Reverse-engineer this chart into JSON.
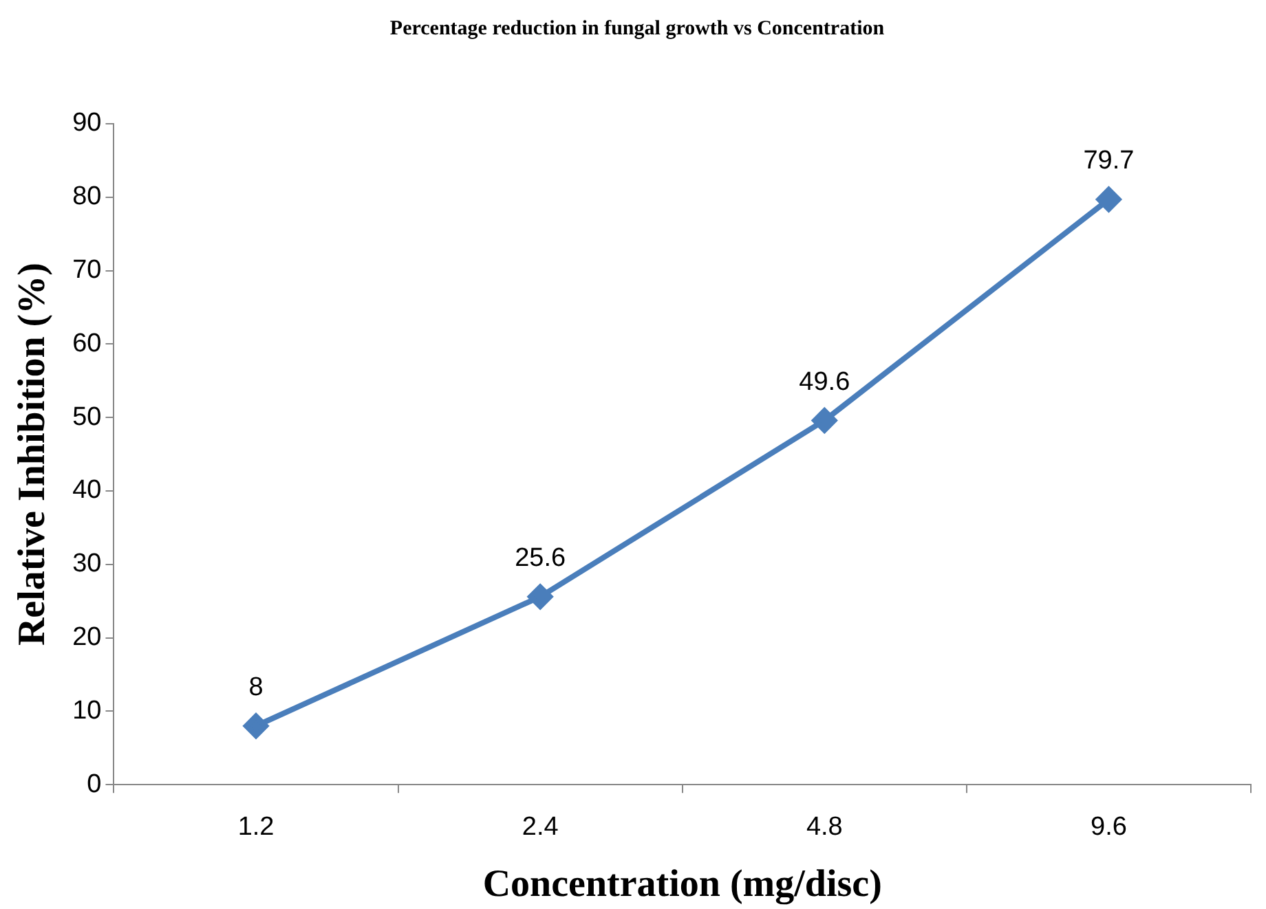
{
  "chart_data": {
    "type": "line",
    "title": "Percentage reduction in fungal growth vs Concentration",
    "xlabel": "Concentration (mg/disc)",
    "ylabel": "Relative Inhibition (%)",
    "categories": [
      "1.2",
      "2.4",
      "4.8",
      "9.6"
    ],
    "series": [
      {
        "color": "#4a7ebb",
        "values": [
          8,
          25.6,
          49.6,
          79.7
        ]
      }
    ],
    "ylim": [
      0,
      90
    ],
    "yticks": [
      0,
      10,
      20,
      30,
      40,
      50,
      60,
      70,
      80,
      90
    ],
    "grid": false,
    "legend": false,
    "marker": "diamond",
    "line_style": "solid",
    "data_labels": true
  }
}
